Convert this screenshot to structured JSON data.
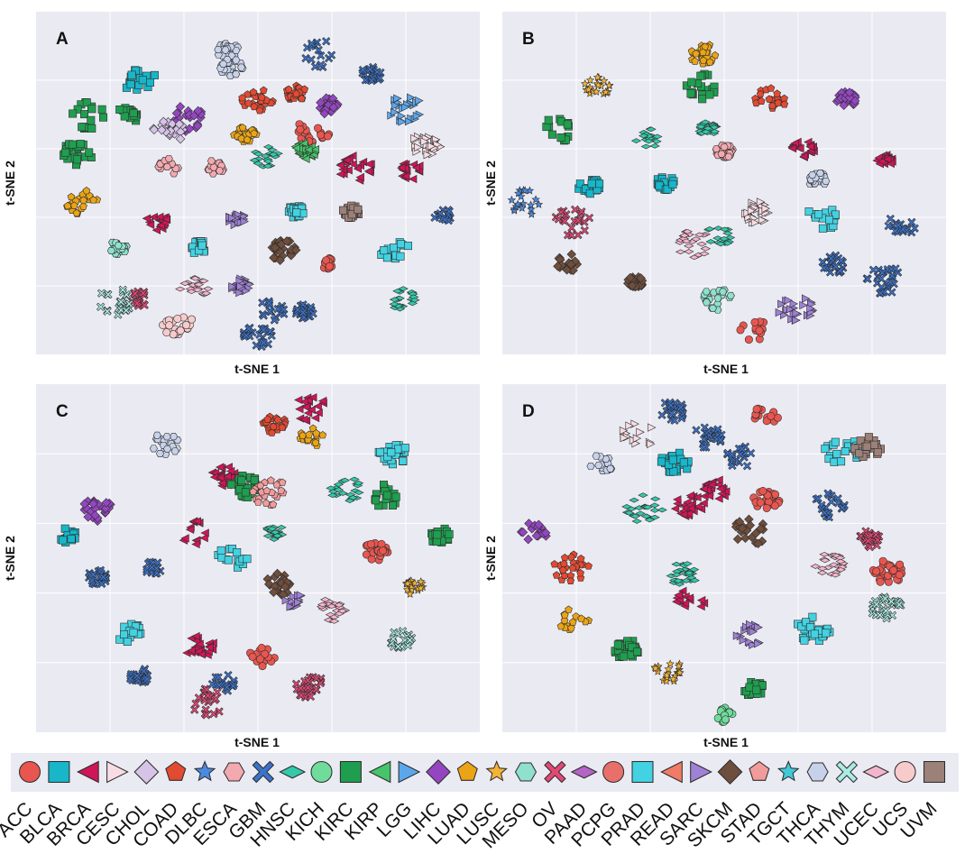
{
  "figure": {
    "panels": [
      {
        "letter": "A",
        "xlabel": "t-SNE 1",
        "ylabel": "t-SNE 2"
      },
      {
        "letter": "B",
        "xlabel": "t-SNE 1",
        "ylabel": "t-SNE 2"
      },
      {
        "letter": "C",
        "xlabel": "t-SNE 1",
        "ylabel": "t-SNE 2"
      },
      {
        "letter": "D",
        "xlabel": "t-SNE 1",
        "ylabel": "t-SNE 2"
      }
    ]
  },
  "chart_data": {
    "type": "scatter",
    "title": "",
    "xlabel": "t-SNE 1",
    "ylabel": "t-SNE 2",
    "grid": true,
    "legend_placement": "bottom",
    "xlim": [
      0,
      100
    ],
    "ylim": [
      0,
      100
    ],
    "legend": [
      {
        "name": "ACC",
        "marker": "circle",
        "color": "#e8564f"
      },
      {
        "name": "BLCA",
        "marker": "square",
        "color": "#17b6c9"
      },
      {
        "name": "BRCA",
        "marker": "triangle-left",
        "color": "#cf1656"
      },
      {
        "name": "CESC",
        "marker": "triangle-right",
        "color": "#f7dde3"
      },
      {
        "name": "CHOL",
        "marker": "diamond",
        "color": "#d6c3e6"
      },
      {
        "name": "COAD",
        "marker": "pentagon",
        "color": "#e34a32"
      },
      {
        "name": "DLBC",
        "marker": "star",
        "color": "#4a8ae0"
      },
      {
        "name": "ESCA",
        "marker": "hexagon",
        "color": "#f2aab0"
      },
      {
        "name": "GBM",
        "marker": "x",
        "color": "#3a73cc"
      },
      {
        "name": "HNSC",
        "marker": "thin-diamond",
        "color": "#34c9aa"
      },
      {
        "name": "KICH",
        "marker": "circle",
        "color": "#70dc9b"
      },
      {
        "name": "KIRC",
        "marker": "square",
        "color": "#1f9e4f"
      },
      {
        "name": "KIRP",
        "marker": "triangle-left",
        "color": "#45c46a"
      },
      {
        "name": "LGG",
        "marker": "triangle-right",
        "color": "#5ca7ec"
      },
      {
        "name": "LIHC",
        "marker": "diamond",
        "color": "#9446c0"
      },
      {
        "name": "LUAD",
        "marker": "pentagon",
        "color": "#eaa416"
      },
      {
        "name": "LUSC",
        "marker": "star",
        "color": "#f5b335"
      },
      {
        "name": "MESO",
        "marker": "hexagon",
        "color": "#8fe0cd"
      },
      {
        "name": "OV",
        "marker": "x",
        "color": "#e54775"
      },
      {
        "name": "PAAD",
        "marker": "thin-diamond",
        "color": "#b563c7"
      },
      {
        "name": "PCPG",
        "marker": "circle",
        "color": "#e8706a"
      },
      {
        "name": "PRAD",
        "marker": "square",
        "color": "#42d2e2"
      },
      {
        "name": "READ",
        "marker": "triangle-left",
        "color": "#f07b66"
      },
      {
        "name": "SARC",
        "marker": "triangle-right",
        "color": "#9f81d6"
      },
      {
        "name": "SKCM",
        "marker": "diamond",
        "color": "#6e4e3c"
      },
      {
        "name": "STAD",
        "marker": "pentagon",
        "color": "#f29b9b"
      },
      {
        "name": "TGCT",
        "marker": "star",
        "color": "#42c9d8"
      },
      {
        "name": "THCA",
        "marker": "hexagon",
        "color": "#c7d2ea"
      },
      {
        "name": "THYM",
        "marker": "x",
        "color": "#a9ece3"
      },
      {
        "name": "UCEC",
        "marker": "thin-diamond",
        "color": "#f4b5cc"
      },
      {
        "name": "UCS",
        "marker": "circle",
        "color": "#f7cbcc"
      },
      {
        "name": "UVM",
        "marker": "square",
        "color": "#9c8178"
      }
    ],
    "panels": [
      {
        "letter": "A",
        "clusters": [
          {
            "cls": "THCA",
            "x": 43,
            "y": 91
          },
          {
            "cls": "THCA",
            "x": 44,
            "y": 86
          },
          {
            "cls": "GBM",
            "x": 65,
            "y": 90
          },
          {
            "cls": "GBM",
            "x": 77,
            "y": 84
          },
          {
            "cls": "BLCA",
            "x": 22,
            "y": 82
          },
          {
            "cls": "KIRC",
            "x": 10,
            "y": 71
          },
          {
            "cls": "KIRC",
            "x": 7,
            "y": 59
          },
          {
            "cls": "KIRC",
            "x": 19,
            "y": 71
          },
          {
            "cls": "COAD",
            "x": 50,
            "y": 76
          },
          {
            "cls": "COAD",
            "x": 59,
            "y": 78
          },
          {
            "cls": "LIHC",
            "x": 67,
            "y": 74
          },
          {
            "cls": "LGG",
            "x": 85,
            "y": 73
          },
          {
            "cls": "LUAD",
            "x": 47,
            "y": 65
          },
          {
            "cls": "LIHC",
            "x": 33,
            "y": 70
          },
          {
            "cls": "CHOL",
            "x": 29,
            "y": 66
          },
          {
            "cls": "ACC",
            "x": 63,
            "y": 66
          },
          {
            "cls": "ESCA",
            "x": 29,
            "y": 55
          },
          {
            "cls": "ESCA",
            "x": 40,
            "y": 55
          },
          {
            "cls": "HNSC",
            "x": 52,
            "y": 58
          },
          {
            "cls": "KIRP",
            "x": 61,
            "y": 60
          },
          {
            "cls": "BRCA",
            "x": 73,
            "y": 55
          },
          {
            "cls": "BRCA",
            "x": 86,
            "y": 54
          },
          {
            "cls": "CESC",
            "x": 90,
            "y": 62
          },
          {
            "cls": "LUAD",
            "x": 8,
            "y": 44
          },
          {
            "cls": "BRCA",
            "x": 26,
            "y": 38
          },
          {
            "cls": "SARC",
            "x": 45,
            "y": 39
          },
          {
            "cls": "PRAD",
            "x": 59,
            "y": 41
          },
          {
            "cls": "UVM",
            "x": 72,
            "y": 41
          },
          {
            "cls": "MESO",
            "x": 17,
            "y": 30
          },
          {
            "cls": "PRAD",
            "x": 36,
            "y": 30
          },
          {
            "cls": "SKCM",
            "x": 56,
            "y": 29
          },
          {
            "cls": "ACC",
            "x": 67,
            "y": 25
          },
          {
            "cls": "PRAD",
            "x": 82,
            "y": 30
          },
          {
            "cls": "UCEC",
            "x": 35,
            "y": 18
          },
          {
            "cls": "OV",
            "x": 22,
            "y": 14
          },
          {
            "cls": "SARC",
            "x": 46,
            "y": 18
          },
          {
            "cls": "GBM",
            "x": 53,
            "y": 10
          },
          {
            "cls": "GBM",
            "x": 61,
            "y": 10
          },
          {
            "cls": "UCS",
            "x": 31,
            "y": 6
          },
          {
            "cls": "GBM",
            "x": 50,
            "y": 2
          },
          {
            "cls": "HNSC",
            "x": 84,
            "y": 14
          },
          {
            "cls": "GBM",
            "x": 94,
            "y": 40
          },
          {
            "cls": "THYM",
            "x": 16,
            "y": 13
          }
        ]
      },
      {
        "letter": "B",
        "clusters": [
          {
            "cls": "LUAD",
            "x": 45,
            "y": 90
          },
          {
            "cls": "LUSC",
            "x": 20,
            "y": 80
          },
          {
            "cls": "KIRC",
            "x": 45,
            "y": 80
          },
          {
            "cls": "COAD",
            "x": 61,
            "y": 76
          },
          {
            "cls": "LIHC",
            "x": 79,
            "y": 76
          },
          {
            "cls": "KIRC",
            "x": 11,
            "y": 67
          },
          {
            "cls": "HNSC",
            "x": 32,
            "y": 64
          },
          {
            "cls": "HNSC",
            "x": 46,
            "y": 67
          },
          {
            "cls": "ESCA",
            "x": 50,
            "y": 60
          },
          {
            "cls": "BRCA",
            "x": 69,
            "y": 61
          },
          {
            "cls": "BRCA",
            "x": 88,
            "y": 57
          },
          {
            "cls": "THCA",
            "x": 72,
            "y": 51
          },
          {
            "cls": "BLCA",
            "x": 18,
            "y": 49
          },
          {
            "cls": "BLCA",
            "x": 36,
            "y": 50
          },
          {
            "cls": "CESC",
            "x": 58,
            "y": 41
          },
          {
            "cls": "PRAD",
            "x": 73,
            "y": 39
          },
          {
            "cls": "OV",
            "x": 14,
            "y": 38
          },
          {
            "cls": "UCEC",
            "x": 43,
            "y": 31
          },
          {
            "cls": "SKCM",
            "x": 13,
            "y": 25
          },
          {
            "cls": "SKCM",
            "x": 29,
            "y": 19
          },
          {
            "cls": "GBM",
            "x": 76,
            "y": 25
          },
          {
            "cls": "MESO",
            "x": 49,
            "y": 14
          },
          {
            "cls": "SARC",
            "x": 67,
            "y": 11
          },
          {
            "cls": "ACC",
            "x": 57,
            "y": 5
          },
          {
            "cls": "GBM",
            "x": 88,
            "y": 20
          },
          {
            "cls": "HNSC",
            "x": 49,
            "y": 34
          },
          {
            "cls": "GBM",
            "x": 92,
            "y": 37
          },
          {
            "cls": "DLBC",
            "x": 3,
            "y": 44
          }
        ]
      },
      {
        "letter": "C",
        "clusters": [
          {
            "cls": "THCA",
            "x": 28,
            "y": 85
          },
          {
            "cls": "COAD",
            "x": 54,
            "y": 91
          },
          {
            "cls": "BRCA",
            "x": 62,
            "y": 96
          },
          {
            "cls": "LUAD",
            "x": 63,
            "y": 87
          },
          {
            "cls": "BRCA",
            "x": 42,
            "y": 75
          },
          {
            "cls": "KIRC",
            "x": 47,
            "y": 72
          },
          {
            "cls": "PRAD",
            "x": 82,
            "y": 82
          },
          {
            "cls": "LIHC",
            "x": 12,
            "y": 65
          },
          {
            "cls": "HNSC",
            "x": 71,
            "y": 71
          },
          {
            "cls": "KIRC",
            "x": 80,
            "y": 69
          },
          {
            "cls": "KIRC",
            "x": 93,
            "y": 57
          },
          {
            "cls": "BLCA",
            "x": 5,
            "y": 57
          },
          {
            "cls": "BRCA",
            "x": 35,
            "y": 58
          },
          {
            "cls": "PRAD",
            "x": 44,
            "y": 51
          },
          {
            "cls": "HNSC",
            "x": 54,
            "y": 58
          },
          {
            "cls": "ACC",
            "x": 78,
            "y": 52
          },
          {
            "cls": "LUSC",
            "x": 87,
            "y": 41
          },
          {
            "cls": "GBM",
            "x": 12,
            "y": 44
          },
          {
            "cls": "GBM",
            "x": 25,
            "y": 47
          },
          {
            "cls": "SKCM",
            "x": 55,
            "y": 42
          },
          {
            "cls": "SARC",
            "x": 59,
            "y": 37
          },
          {
            "cls": "UCEC",
            "x": 67,
            "y": 34
          },
          {
            "cls": "PRAD",
            "x": 19,
            "y": 27
          },
          {
            "cls": "BRCA",
            "x": 36,
            "y": 23
          },
          {
            "cls": "GBM",
            "x": 22,
            "y": 14
          },
          {
            "cls": "OV",
            "x": 38,
            "y": 6
          },
          {
            "cls": "GBM",
            "x": 42,
            "y": 12
          },
          {
            "cls": "ACC",
            "x": 51,
            "y": 20
          },
          {
            "cls": "OV",
            "x": 62,
            "y": 11
          },
          {
            "cls": "THYM",
            "x": 84,
            "y": 25
          },
          {
            "cls": "STAD",
            "x": 53,
            "y": 70
          }
        ]
      },
      {
        "letter": "D",
        "clusters": [
          {
            "cls": "GBM",
            "x": 38,
            "y": 95
          },
          {
            "cls": "GBM",
            "x": 46,
            "y": 87
          },
          {
            "cls": "ACC",
            "x": 60,
            "y": 94
          },
          {
            "cls": "CESC",
            "x": 30,
            "y": 88
          },
          {
            "cls": "THCA",
            "x": 21,
            "y": 79
          },
          {
            "cls": "BLCA",
            "x": 38,
            "y": 79
          },
          {
            "cls": "GBM",
            "x": 54,
            "y": 81
          },
          {
            "cls": "PRAD",
            "x": 78,
            "y": 83
          },
          {
            "cls": "BRCA",
            "x": 42,
            "y": 66
          },
          {
            "cls": "BRCA",
            "x": 48,
            "y": 71
          },
          {
            "cls": "ACC",
            "x": 60,
            "y": 68
          },
          {
            "cls": "GBM",
            "x": 75,
            "y": 66
          },
          {
            "cls": "LIHC",
            "x": 5,
            "y": 58
          },
          {
            "cls": "HNSC",
            "x": 31,
            "y": 65
          },
          {
            "cls": "SKCM",
            "x": 56,
            "y": 58
          },
          {
            "cls": "UCEC",
            "x": 75,
            "y": 48
          },
          {
            "cls": "OV",
            "x": 85,
            "y": 56
          },
          {
            "cls": "COAD",
            "x": 14,
            "y": 47
          },
          {
            "cls": "HNSC",
            "x": 40,
            "y": 45
          },
          {
            "cls": "BRCA",
            "x": 42,
            "y": 38
          },
          {
            "cls": "LUAD",
            "x": 14,
            "y": 32
          },
          {
            "cls": "PRAD",
            "x": 71,
            "y": 28
          },
          {
            "cls": "KIRC",
            "x": 27,
            "y": 22
          },
          {
            "cls": "LUSC",
            "x": 37,
            "y": 15
          },
          {
            "cls": "SARC",
            "x": 56,
            "y": 27
          },
          {
            "cls": "KIRC",
            "x": 57,
            "y": 10
          },
          {
            "cls": "KICH",
            "x": 50,
            "y": 2
          },
          {
            "cls": "THYM",
            "x": 88,
            "y": 35
          },
          {
            "cls": "ACC",
            "x": 89,
            "y": 46
          },
          {
            "cls": "UVM",
            "x": 84,
            "y": 84
          }
        ]
      }
    ]
  }
}
